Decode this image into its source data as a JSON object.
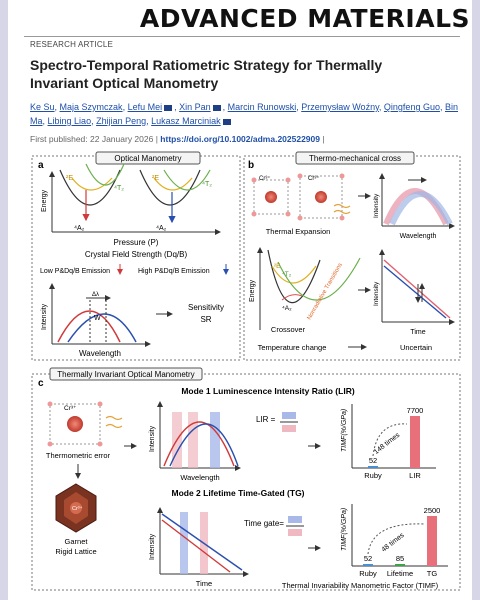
{
  "header": {
    "journal_name": "ADVANCED MATERIALS",
    "article_type": "RESEARCH ARTICLE",
    "title_line1": "Spectro-Temporal Ratiometric Strategy for Thermally",
    "title_line2": "Invariant Optical Manometry",
    "authors": [
      "Ke Su",
      "Maja Szymczak",
      "Lefu Mei",
      "Xin Pan",
      "Marcin Runowski",
      "Przemysław Woźny",
      "Qingfeng Guo",
      "Bin Ma",
      "Libing Liao",
      "Zhijian Peng",
      "Lukasz Marciniak"
    ],
    "first_published_label": "First published:",
    "first_published_date": "22 January 2026",
    "doi": "https://doi.org/10.1002/adma.202522909"
  },
  "figure": {
    "panel_a": {
      "letter": "a",
      "title": "Optical Manometry",
      "energy_label": "Energy",
      "pressure_label": "Pressure (P)",
      "field_label": "Crystal Field Strength (Dq/B)",
      "low_emission": "Low P&Dq/B Emission",
      "high_emission": "High P&Dq/B Emission",
      "intensity_label": "Intensity",
      "wavelength_label": "Wavelength",
      "sensitivity_label": "Sensitivity",
      "sensitivity_symbol": "SR",
      "state_E": "²E",
      "state_T2": "⁴T₂",
      "state_A2": "⁴A₂",
      "delta_label": "Δλ",
      "w_label": "W"
    },
    "panel_b": {
      "letter": "b",
      "title": "Thermo-mechanical cross",
      "ion_label": "Cr³⁺",
      "thermal_expansion": "Thermal Expansion",
      "intensity_label": "Intensity",
      "wavelength_label": "Wavelength",
      "energy_label": "Energy",
      "nonradiative": "Nonradiative Transitions",
      "crossover": "Crossover",
      "time_label": "Time",
      "temperature_change": "Temperature change",
      "uncertain": "Uncertain",
      "state_E": "²E",
      "state_T2": "⁴T₂",
      "state_A2": "⁴A₂"
    },
    "panel_c": {
      "letter": "c",
      "title": "Thermally Invariant Optical Manometry",
      "mode1_title": "Mode 1 Luminescence Intensity Ratio (LIR)",
      "mode2_title": "Mode 2 Lifetime Time-Gated (TG)",
      "ion_label": "Cr³⁺",
      "thermometric_error": "Thermometric error",
      "garnet_label_1": "Garnet",
      "garnet_label_2": "Rigid Lattice",
      "intensity_label": "Intensity",
      "wavelength_label": "Wavelength",
      "time_label": "Time",
      "lir_eq": "LIR =",
      "time_gate_eq": "Time gate=",
      "timf_axis": "TIMF(%/GPa)",
      "factor_caption": "Thermal Invariability Manometric Factor  (TIMF)"
    }
  },
  "chart_data": [
    {
      "type": "bar",
      "categories": [
        "Ruby",
        "LIR"
      ],
      "values": [
        52,
        7700
      ],
      "value_labels": [
        "52",
        "7700"
      ],
      "ylabel": "TIMF(%/GPa)",
      "annotation": "148 times",
      "colors": [
        "#4a8fd6",
        "#e8707a"
      ]
    },
    {
      "type": "bar",
      "categories": [
        "Ruby",
        "Lifetime",
        "TG"
      ],
      "values": [
        52,
        85,
        2500
      ],
      "value_labels": [
        "52",
        "85",
        "2500"
      ],
      "ylabel": "TIMF(%/GPa)",
      "annotation": "48 times",
      "colors": [
        "#4a8fd6",
        "#3aa64a",
        "#e8707a"
      ]
    }
  ]
}
